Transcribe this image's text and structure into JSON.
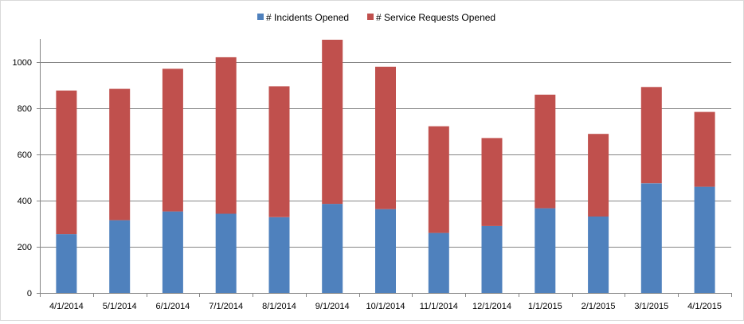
{
  "chart_data": {
    "type": "bar",
    "stacked": true,
    "title": "",
    "xlabel": "",
    "ylabel": "",
    "categories": [
      "4/1/2014",
      "5/1/2014",
      "6/1/2014",
      "7/1/2014",
      "8/1/2014",
      "9/1/2014",
      "10/1/2014",
      "11/1/2014",
      "12/1/2014",
      "1/1/2015",
      "2/1/2015",
      "3/1/2015",
      "4/1/2015"
    ],
    "series": [
      {
        "name": "# Incidents Opened",
        "color": "#4f81bd",
        "values": [
          255,
          315,
          353,
          343,
          328,
          386,
          363,
          260,
          290,
          367,
          331,
          475,
          460
        ]
      },
      {
        "name": "# Service Requests Opened",
        "color": "#c0504d",
        "values": [
          622,
          569,
          618,
          678,
          567,
          711,
          617,
          462,
          381,
          492,
          358,
          417,
          324
        ]
      }
    ],
    "ylim": [
      0,
      1100
    ],
    "yticks": [
      0,
      200,
      400,
      600,
      800,
      1000
    ],
    "grid": true,
    "legend_position": "top-center"
  }
}
